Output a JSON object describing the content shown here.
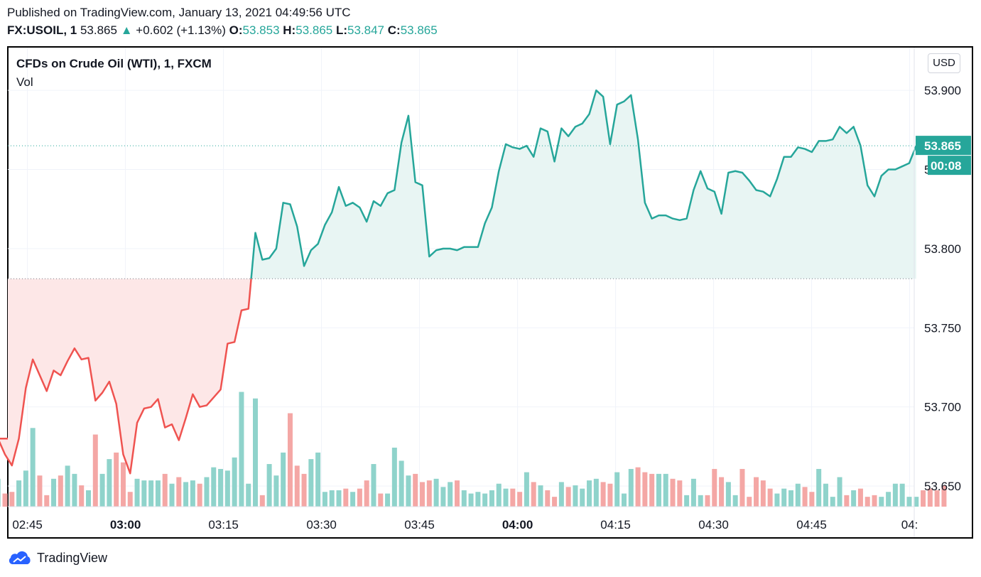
{
  "published": "Published on TradingView.com, January 13, 2021 04:49:56 UTC",
  "quote": {
    "symbol": "FX:USOIL, 1",
    "last": "53.865",
    "arrow": "▲",
    "change": "+0.602 (+1.13%)",
    "o_label": "O:",
    "o": "53.853",
    "h_label": "H:",
    "h": "53.865",
    "l_label": "L:",
    "l": "53.847",
    "c_label": "C:",
    "c": "53.865"
  },
  "chart_title": "CFDs on Crude Oil (WTI), 1, FXCM",
  "volume_label": "Vol",
  "currency_button": "USD",
  "price_tag": "53.865",
  "countdown_tag": "00:08",
  "footer_brand": "TradingView",
  "colors": {
    "up": "#26a69a",
    "down": "#ef5350",
    "up_fill": "#e8f5f3",
    "down_fill": "#fde7e7",
    "vol_up": "#8fd3cb",
    "vol_down": "#f4a7a5"
  },
  "chart_data": {
    "type": "area",
    "baseline": 53.781,
    "ylim": [
      53.637,
      53.927
    ],
    "y_ticks": [
      53.65,
      53.7,
      53.75,
      53.8,
      53.85,
      53.9
    ],
    "y_tick_labels": [
      "53.650",
      "53.700",
      "53.750",
      "53.800",
      "53.850",
      "53.900"
    ],
    "x_ticks": [
      {
        "t": 44.5,
        "label": "02:45",
        "bold": false
      },
      {
        "t": 59.5,
        "label": "03:00",
        "bold": true
      },
      {
        "t": 74.5,
        "label": "03:15",
        "bold": false
      },
      {
        "t": 89.5,
        "label": "03:30",
        "bold": false
      },
      {
        "t": 104.5,
        "label": "03:45",
        "bold": false
      },
      {
        "t": 119.5,
        "label": "04:00",
        "bold": true
      },
      {
        "t": 134.5,
        "label": "04:15",
        "bold": false
      },
      {
        "t": 149.5,
        "label": "04:30",
        "bold": false
      },
      {
        "t": 164.5,
        "label": "04:45",
        "bold": false
      },
      {
        "t": 179.5,
        "label": "04:",
        "bold": false
      }
    ],
    "x_start": 40,
    "x_end": 180.5,
    "price": [
      53.68,
      53.67,
      53.663,
      53.68,
      53.712,
      53.73,
      53.72,
      53.71,
      53.723,
      53.72,
      53.729,
      53.737,
      53.73,
      53.731,
      53.704,
      53.709,
      53.716,
      53.702,
      53.67,
      53.658,
      53.69,
      53.699,
      53.7,
      53.705,
      53.687,
      53.689,
      53.679,
      53.693,
      53.708,
      53.7,
      53.701,
      53.706,
      53.711,
      53.74,
      53.741,
      53.761,
      53.762,
      53.81,
      53.793,
      53.794,
      53.8,
      53.829,
      53.828,
      53.814,
      53.789,
      53.799,
      53.803,
      53.815,
      53.823,
      53.839,
      53.827,
      53.829,
      53.826,
      53.817,
      53.83,
      53.827,
      53.835,
      53.837,
      53.867,
      53.884,
      53.842,
      53.84,
      53.795,
      53.799,
      53.8,
      53.8,
      53.799,
      53.801,
      53.801,
      53.801,
      53.816,
      53.826,
      53.849,
      53.866,
      53.864,
      53.863,
      53.865,
      53.858,
      53.876,
      53.874,
      53.855,
      53.876,
      53.871,
      53.877,
      53.879,
      53.885,
      53.9,
      53.896,
      53.866,
      53.891,
      53.893,
      53.897,
      53.869,
      53.829,
      53.819,
      53.821,
      53.821,
      53.819,
      53.818,
      53.819,
      53.837,
      53.849,
      53.838,
      53.836,
      53.822,
      53.848,
      53.849,
      53.848,
      53.843,
      53.837,
      53.836,
      53.833,
      53.844,
      53.858,
      53.858,
      53.864,
      53.863,
      53.861,
      53.868,
      53.868,
      53.869,
      53.877,
      53.873,
      53.877,
      53.865,
      53.84,
      53.833,
      53.846,
      53.85,
      53.85,
      53.852,
      53.854,
      53.865
    ],
    "volume": [
      17,
      8,
      9,
      16,
      22,
      48,
      19,
      7,
      17,
      19,
      25,
      20,
      13,
      10,
      44,
      20,
      29,
      33,
      27,
      9,
      17,
      16,
      16,
      16,
      20,
      14,
      18,
      15,
      16,
      14,
      18,
      24,
      23,
      22,
      30,
      70,
      14,
      66,
      7,
      26,
      19,
      33,
      57,
      25,
      20,
      29,
      33,
      9,
      10,
      10,
      11,
      9,
      11,
      16,
      26,
      8,
      8,
      36,
      28,
      19,
      20,
      15,
      16,
      17,
      12,
      15,
      16,
      10,
      8,
      9,
      8,
      10,
      14,
      11,
      11,
      9,
      21,
      15,
      13,
      10,
      6,
      15,
      12,
      13,
      11,
      16,
      17,
      15,
      14,
      21,
      8,
      23,
      24,
      21,
      20,
      20,
      20,
      17,
      16,
      7,
      17,
      7,
      7,
      23,
      18,
      15,
      7,
      23,
      6,
      18,
      16,
      11,
      8,
      11,
      10,
      14,
      12,
      9,
      23,
      14,
      6,
      18,
      7,
      10,
      11,
      6,
      7,
      6,
      9,
      14,
      14,
      6,
      6,
      10,
      11,
      10,
      13
    ],
    "volume_max": 75
  }
}
